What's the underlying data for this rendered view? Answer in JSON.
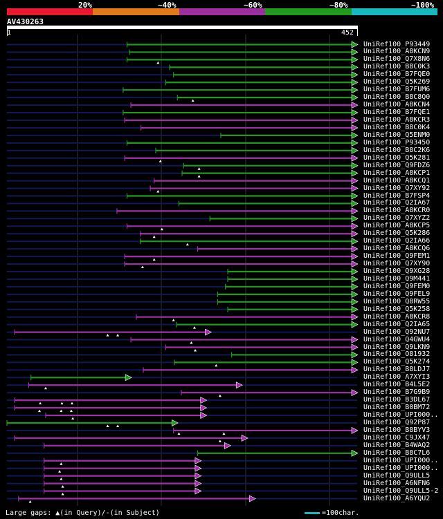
{
  "legend": {
    "segments": [
      {
        "from": 0,
        "to": 20,
        "color": "#e8192c"
      },
      {
        "from": 20,
        "to": 40,
        "color": "#e07a1a"
      },
      {
        "from": 40,
        "to": 60,
        "color": "#9c2ea0"
      },
      {
        "from": 60,
        "to": 80,
        "color": "#1f9a1f"
      },
      {
        "from": 80,
        "to": 100,
        "color": "#17b8c0"
      }
    ],
    "labels": [
      "20%",
      "~40%",
      "~60%",
      "~80%",
      "~100%"
    ]
  },
  "query": {
    "id": "AV430263",
    "start": "1",
    "end": "452",
    "length": 452
  },
  "colors": {
    "green": "#1f9a1f",
    "purple": "#a030a8",
    "navy": "#101858",
    "grid": "#333333"
  },
  "hits": [
    {
      "label": "UniRef100_P93449",
      "color": "green",
      "s": 155,
      "e": 452,
      "m": []
    },
    {
      "label": "UniRef100_A8KCN9",
      "color": "green",
      "s": 158,
      "e": 452,
      "m": []
    },
    {
      "label": "UniRef100_Q7X8N6",
      "color": "green",
      "s": 155,
      "e": 452,
      "m": [
        195
      ]
    },
    {
      "label": "UniRef100_B8C0K3",
      "color": "green",
      "s": 210,
      "e": 452,
      "m": []
    },
    {
      "label": "UniRef100_B7FQE0",
      "color": "green",
      "s": 215,
      "e": 452,
      "m": []
    },
    {
      "label": "UniRef100_Q5K269",
      "color": "green",
      "s": 205,
      "e": 452,
      "m": []
    },
    {
      "label": "UniRef100_B7FUM6",
      "color": "green",
      "s": 150,
      "e": 452,
      "m": []
    },
    {
      "label": "UniRef100_B8C8Q0",
      "color": "green",
      "s": 220,
      "e": 452,
      "m": [
        240
      ]
    },
    {
      "label": "UniRef100_A8KCN4",
      "color": "purple",
      "s": 160,
      "e": 452,
      "m": []
    },
    {
      "label": "UniRef100_B7FQE1",
      "color": "green",
      "s": 150,
      "e": 452,
      "m": []
    },
    {
      "label": "UniRef100_A8KCR3",
      "color": "purple",
      "s": 152,
      "e": 452,
      "m": []
    },
    {
      "label": "UniRef100_B8C0K4",
      "color": "purple",
      "s": 173,
      "e": 452,
      "m": []
    },
    {
      "label": "UniRef100_Q5ENM0",
      "color": "green",
      "s": 276,
      "e": 452,
      "m": []
    },
    {
      "label": "UniRef100_P93450",
      "color": "green",
      "s": 155,
      "e": 452,
      "m": []
    },
    {
      "label": "UniRef100_B8C2K6",
      "color": "green",
      "s": 192,
      "e": 452,
      "m": []
    },
    {
      "label": "UniRef100_Q5K281",
      "color": "purple",
      "s": 152,
      "e": 452,
      "m": [
        198
      ]
    },
    {
      "label": "UniRef100_Q9FDZ6",
      "color": "green",
      "s": 228,
      "e": 452,
      "m": [
        248
      ]
    },
    {
      "label": "UniRef100_A8KCP1",
      "color": "green",
      "s": 226,
      "e": 452,
      "m": [
        248
      ]
    },
    {
      "label": "UniRef100_A8KCQ1",
      "color": "purple",
      "s": 190,
      "e": 452,
      "m": []
    },
    {
      "label": "UniRef100_Q7XY92",
      "color": "purple",
      "s": 185,
      "e": 452,
      "m": [
        195
      ]
    },
    {
      "label": "UniRef100_B7FSP4",
      "color": "green",
      "s": 155,
      "e": 452,
      "m": []
    },
    {
      "label": "UniRef100_Q2IA67",
      "color": "green",
      "s": 222,
      "e": 452,
      "m": []
    },
    {
      "label": "UniRef100_A8KCR0",
      "color": "purple",
      "s": 142,
      "e": 452,
      "m": []
    },
    {
      "label": "UniRef100_Q7XYZ2",
      "color": "green",
      "s": 262,
      "e": 452,
      "m": []
    },
    {
      "label": "UniRef100_A8KCP5",
      "color": "purple",
      "s": 155,
      "e": 452,
      "m": [
        200
      ]
    },
    {
      "label": "UniRef100_Q5K286",
      "color": "purple",
      "s": 172,
      "e": 452,
      "m": [
        190
      ]
    },
    {
      "label": "UniRef100_Q2IA66",
      "color": "green",
      "s": 172,
      "e": 452,
      "m": [
        233
      ]
    },
    {
      "label": "UniRef100_A8KCQ6",
      "color": "purple",
      "s": 246,
      "e": 452,
      "m": []
    },
    {
      "label": "UniRef100_Q9FEM1",
      "color": "purple",
      "s": 152,
      "e": 452,
      "m": [
        190
      ]
    },
    {
      "label": "UniRef100_Q7XY90",
      "color": "purple",
      "s": 152,
      "e": 452,
      "m": [
        175
      ]
    },
    {
      "label": "UniRef100_Q9XG28",
      "color": "green",
      "s": 285,
      "e": 452,
      "m": []
    },
    {
      "label": "UniRef100_Q9M441",
      "color": "green",
      "s": 285,
      "e": 452,
      "m": []
    },
    {
      "label": "UniRef100_Q9FEM0",
      "color": "green",
      "s": 282,
      "e": 452,
      "m": []
    },
    {
      "label": "UniRef100_Q9FEL9",
      "color": "green",
      "s": 272,
      "e": 452,
      "m": []
    },
    {
      "label": "UniRef100_Q8RW55",
      "color": "green",
      "s": 272,
      "e": 452,
      "m": []
    },
    {
      "label": "UniRef100_Q5K258",
      "color": "green",
      "s": 285,
      "e": 452,
      "m": []
    },
    {
      "label": "UniRef100_A8KCR8",
      "color": "purple",
      "s": 167,
      "e": 452,
      "m": [
        215
      ]
    },
    {
      "label": "UniRef100_Q2IA65",
      "color": "green",
      "s": 219,
      "e": 452,
      "m": [
        242
      ]
    },
    {
      "label": "UniRef100_Q92NU7",
      "color": "purple",
      "s": 10,
      "e": 263,
      "m": [
        130,
        143
      ]
    },
    {
      "label": "UniRef100_Q4GWU4",
      "color": "purple",
      "s": 160,
      "e": 452,
      "m": [
        238
      ]
    },
    {
      "label": "UniRef100_Q9LKN9",
      "color": "purple",
      "s": 205,
      "e": 452,
      "m": [
        243
      ]
    },
    {
      "label": "UniRef100_O81932",
      "color": "green",
      "s": 290,
      "e": 452,
      "m": []
    },
    {
      "label": "UniRef100_Q5K274",
      "color": "green",
      "s": 216,
      "e": 452,
      "m": [
        270
      ]
    },
    {
      "label": "UniRef100_B8LDJ7",
      "color": "purple",
      "s": 176,
      "e": 452,
      "m": []
    },
    {
      "label": "UniRef100_A7XYI3",
      "color": "green",
      "s": 31,
      "e": 160,
      "m": []
    },
    {
      "label": "UniRef100_B4L5E2",
      "color": "purple",
      "s": 28,
      "e": 303,
      "m": [
        50
      ]
    },
    {
      "label": "UniRef100_B7G9B9",
      "color": "purple",
      "s": 225,
      "e": 452,
      "m": [
        275
      ]
    },
    {
      "label": "UniRef100_B3DL67",
      "color": "purple",
      "s": 10,
      "e": 257,
      "m": [
        43,
        71,
        84
      ]
    },
    {
      "label": "UniRef100_B0BM72",
      "color": "purple",
      "s": 10,
      "e": 257,
      "m": [
        42,
        70,
        83
      ]
    },
    {
      "label": "UniRef100_UPI000..",
      "color": "purple",
      "s": 50,
      "e": 257,
      "m": [
        85
      ]
    },
    {
      "label": "UniRef100_Q92P87",
      "color": "green",
      "s": 0,
      "e": 220,
      "m": [
        130,
        143
      ]
    },
    {
      "label": "UniRef100_B8BYV3",
      "color": "purple",
      "s": 215,
      "e": 452,
      "m": [
        222,
        280
      ]
    },
    {
      "label": "UniRef100_C9JX47",
      "color": "purple",
      "s": 10,
      "e": 310,
      "m": [
        275
      ]
    },
    {
      "label": "UniRef100_B4WAQ2",
      "color": "purple",
      "s": 48,
      "e": 288,
      "m": []
    },
    {
      "label": "UniRef100_B8C7L6",
      "color": "green",
      "s": 246,
      "e": 452,
      "m": []
    },
    {
      "label": "UniRef100_UPI000..",
      "color": "purple",
      "s": 48,
      "e": 250,
      "m": [
        70
      ]
    },
    {
      "label": "UniRef100_UPI000..",
      "color": "purple",
      "s": 48,
      "e": 250,
      "m": [
        68
      ]
    },
    {
      "label": "UniRef100_Q9ULL5",
      "color": "purple",
      "s": 48,
      "e": 250,
      "m": [
        70
      ]
    },
    {
      "label": "UniRef100_A6NFN6",
      "color": "purple",
      "s": 48,
      "e": 250,
      "m": [
        72
      ]
    },
    {
      "label": "UniRef100_Q9ULL5-2",
      "color": "purple",
      "s": 48,
      "e": 250,
      "m": [
        72
      ]
    },
    {
      "label": "UniRef100_A6YQU2",
      "color": "purple",
      "s": 15,
      "e": 320,
      "m": [
        30
      ]
    }
  ],
  "footer": {
    "large_gaps": "Large gaps:",
    "query_gap_mark": "▲",
    "query_gap_text": "(in Query)/",
    "subject_gap_mark": "-",
    "subject_gap_text": "(in Subject)",
    "scale_text": "=100char.",
    "scale_color": "#17b8c0"
  }
}
